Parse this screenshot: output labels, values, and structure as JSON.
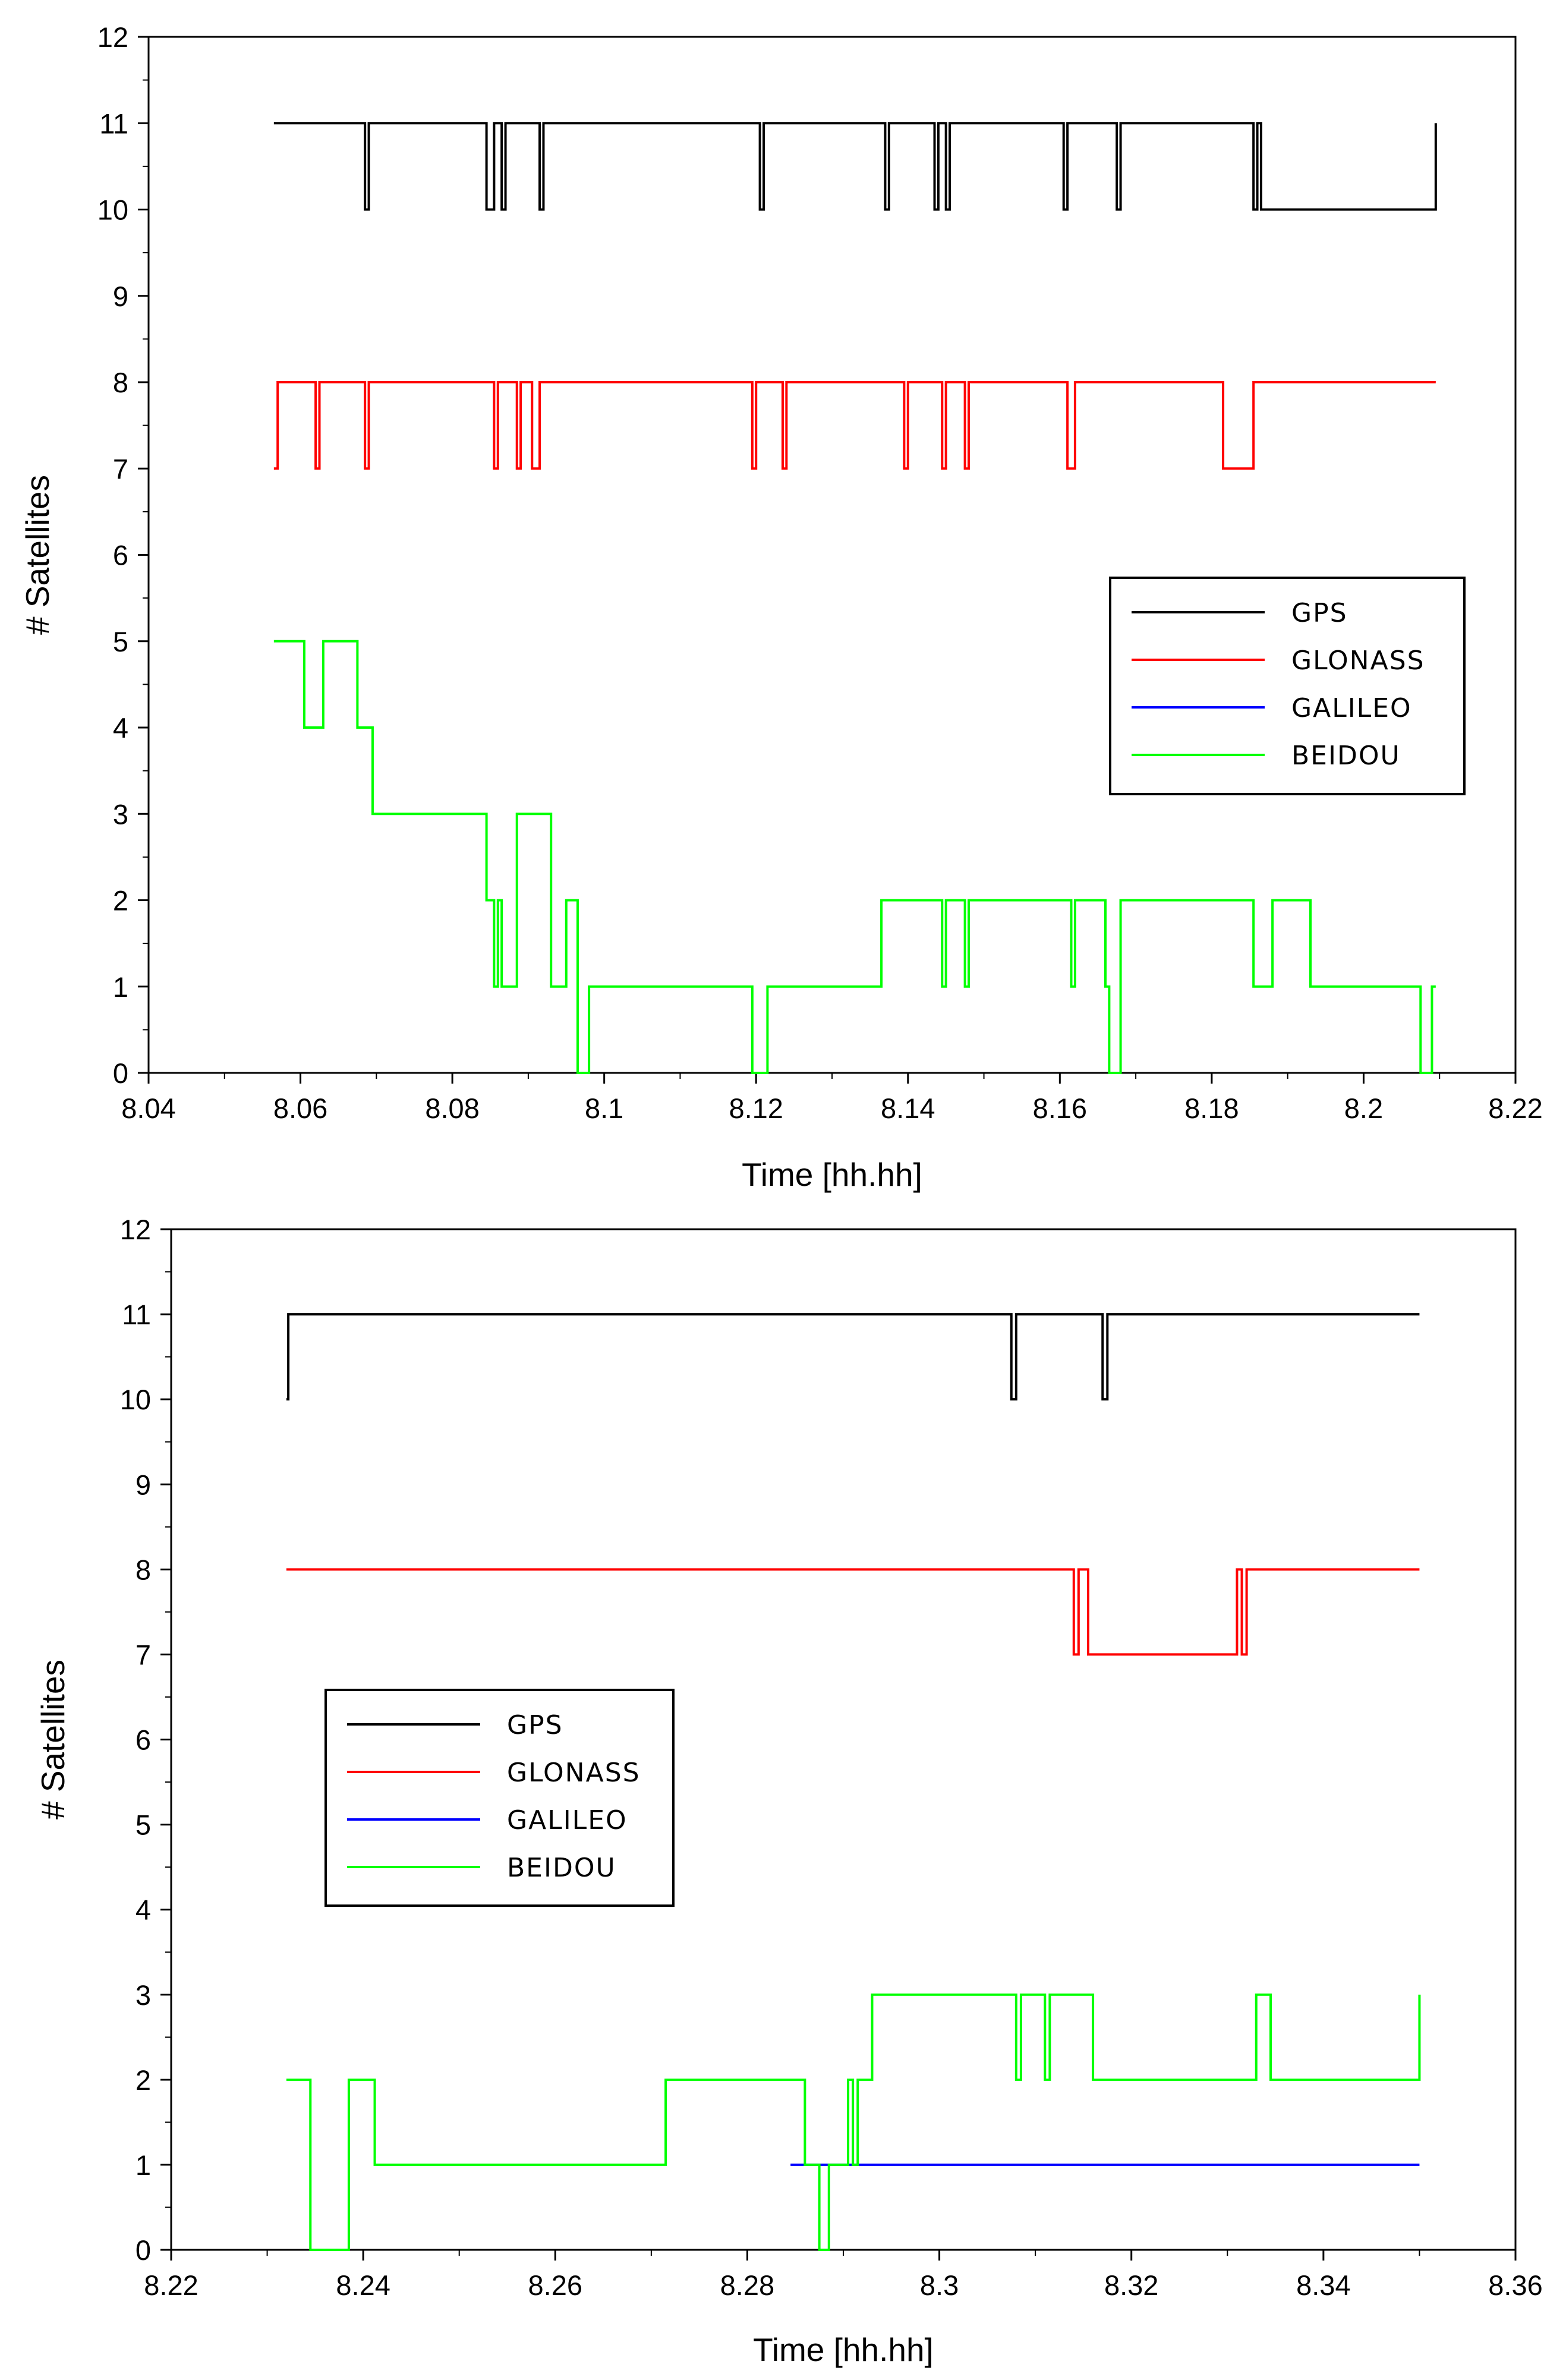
{
  "chart_data": [
    {
      "type": "line",
      "step": true,
      "xlabel": "Time [hh.hh]",
      "ylabel": "# Satellites",
      "xlim": [
        8.04,
        8.22
      ],
      "ylim": [
        0,
        12
      ],
      "xticks": [
        "8.04",
        "8.06",
        "8.08",
        "8.1",
        "8.12",
        "8.14",
        "8.16",
        "8.18",
        "8.2",
        "8.22"
      ],
      "yticks": [
        "0",
        "1",
        "2",
        "3",
        "4",
        "5",
        "6",
        "7",
        "8",
        "9",
        "10",
        "11",
        "12"
      ],
      "legend_position": "right",
      "series": [
        {
          "name": "GPS",
          "color": "#000000",
          "x": [
            8.0565,
            8.0685,
            8.069,
            8.0845,
            8.0855,
            8.0865,
            8.087,
            8.0915,
            8.092,
            8.1205,
            8.121,
            8.137,
            8.1375,
            8.1435,
            8.144,
            8.145,
            8.1455,
            8.1605,
            8.161,
            8.1675,
            8.168,
            8.1855,
            8.186,
            8.1865,
            8.2095
          ],
          "y": [
            11,
            10,
            11,
            10,
            11,
            10,
            11,
            10,
            11,
            10,
            11,
            10,
            11,
            10,
            11,
            10,
            11,
            10,
            11,
            10,
            11,
            10,
            11,
            10,
            11
          ]
        },
        {
          "name": "GLONASS",
          "color": "#ff0000",
          "x": [
            8.0565,
            8.057,
            8.062,
            8.0625,
            8.0685,
            8.069,
            8.0855,
            8.086,
            8.0885,
            8.089,
            8.0905,
            8.0915,
            8.1195,
            8.12,
            8.1235,
            8.124,
            8.1395,
            8.14,
            8.1445,
            8.145,
            8.1475,
            8.148,
            8.161,
            8.162,
            8.1815,
            8.1835,
            8.1855,
            8.2095
          ],
          "y": [
            7,
            8,
            7,
            8,
            7,
            8,
            7,
            8,
            7,
            8,
            7,
            8,
            7,
            8,
            7,
            8,
            7,
            8,
            7,
            8,
            7,
            8,
            7,
            8,
            7,
            7,
            8,
            8
          ]
        },
        {
          "name": "GALILEO",
          "color": "#0000ff",
          "x": [],
          "y": []
        },
        {
          "name": "BEIDOU",
          "color": "#00ff00",
          "x": [
            8.0565,
            8.0605,
            8.063,
            8.0675,
            8.0695,
            8.0845,
            8.0855,
            8.086,
            8.0865,
            8.0885,
            8.093,
            8.095,
            8.0965,
            8.098,
            8.1195,
            8.1215,
            8.1365,
            8.1445,
            8.145,
            8.1475,
            8.148,
            8.1615,
            8.162,
            8.166,
            8.1665,
            8.168,
            8.1855,
            8.188,
            8.193,
            8.2075,
            8.209,
            8.2095
          ],
          "y": [
            5,
            4,
            5,
            4,
            3,
            2,
            1,
            2,
            1,
            3,
            1,
            2,
            0,
            1,
            0,
            1,
            2,
            1,
            2,
            1,
            2,
            1,
            2,
            1,
            0,
            2,
            1,
            2,
            1,
            0,
            1,
            1
          ]
        }
      ]
    },
    {
      "type": "line",
      "step": true,
      "xlabel": "Time [hh.hh]",
      "ylabel": "# Satellites",
      "xlim": [
        8.22,
        8.36
      ],
      "ylim": [
        0,
        12
      ],
      "xticks": [
        "8.22",
        "8.24",
        "8.26",
        "8.28",
        "8.3",
        "8.32",
        "8.34",
        "8.36"
      ],
      "yticks": [
        "0",
        "1",
        "2",
        "3",
        "4",
        "5",
        "6",
        "7",
        "8",
        "9",
        "10",
        "11",
        "12"
      ],
      "legend_position": "center-left",
      "series": [
        {
          "name": "GPS",
          "color": "#000000",
          "x": [
            8.232,
            8.2322,
            8.3075,
            8.308,
            8.317,
            8.3175,
            8.35
          ],
          "y": [
            10,
            11,
            10,
            11,
            10,
            11,
            11
          ]
        },
        {
          "name": "GLONASS",
          "color": "#ff0000",
          "x": [
            8.232,
            8.314,
            8.3145,
            8.3155,
            8.331,
            8.3315,
            8.332,
            8.35
          ],
          "y": [
            8,
            7,
            8,
            7,
            8,
            7,
            8,
            8
          ]
        },
        {
          "name": "GALILEO",
          "color": "#0000ff",
          "x": [
            8.2845,
            8.35
          ],
          "y": [
            1,
            1
          ]
        },
        {
          "name": "BEIDOU",
          "color": "#00ff00",
          "x": [
            8.232,
            8.2345,
            8.2385,
            8.2412,
            8.2715,
            8.286,
            8.2875,
            8.2885,
            8.2895,
            8.2905,
            8.291,
            8.2915,
            8.293,
            8.308,
            8.3085,
            8.311,
            8.3115,
            8.316,
            8.333,
            8.3345,
            8.3495,
            8.35
          ],
          "y": [
            2,
            0,
            2,
            1,
            2,
            1,
            0,
            1,
            1,
            2,
            1,
            2,
            3,
            2,
            3,
            2,
            3,
            2,
            3,
            2,
            2,
            3
          ]
        }
      ]
    }
  ]
}
